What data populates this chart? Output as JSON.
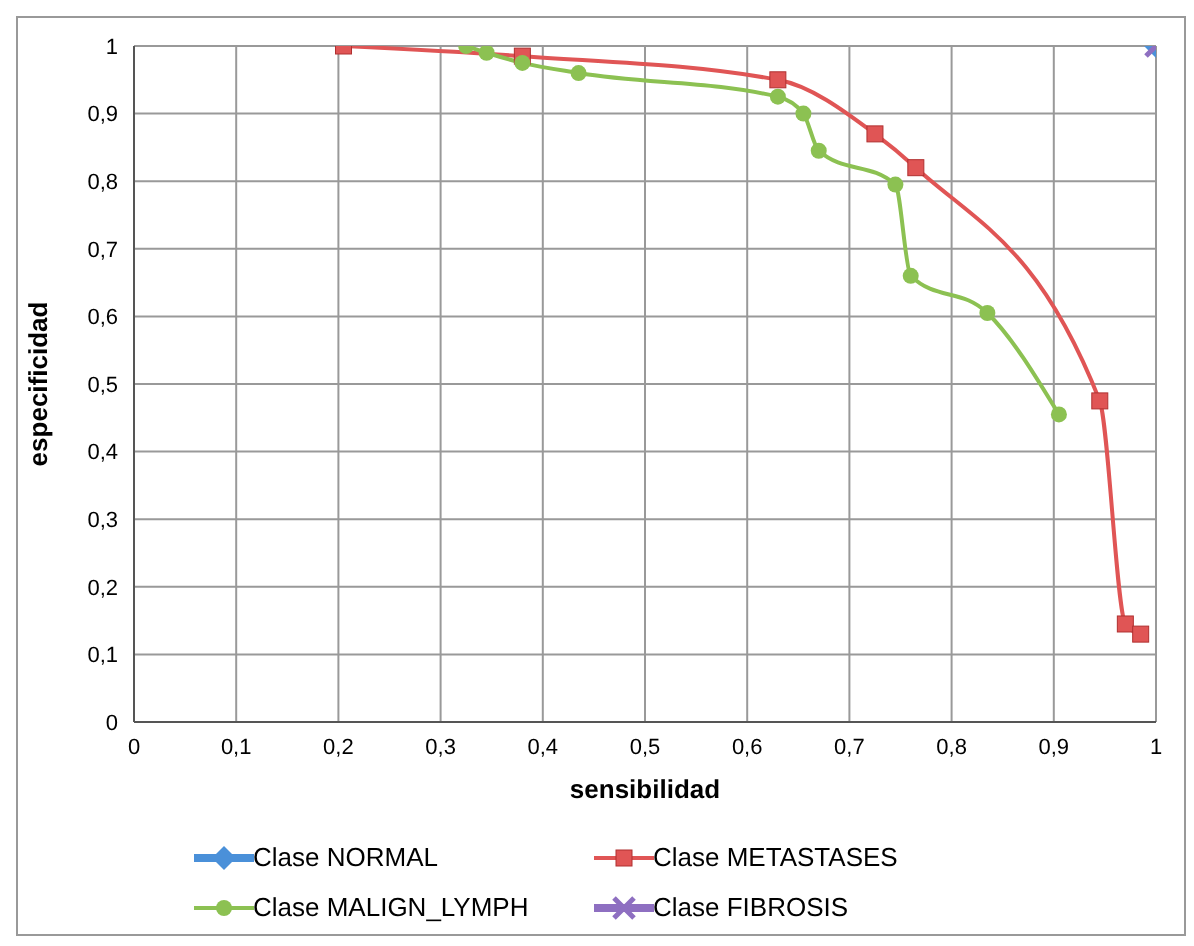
{
  "chart_data": {
    "type": "line",
    "xlabel": "sensibilidad",
    "ylabel": "especificidad",
    "xlim": [
      0,
      1
    ],
    "ylim": [
      0,
      1
    ],
    "xticks": [
      0,
      {
        "value": 0.1,
        "label": "0,1"
      },
      {
        "value": 0.2,
        "label": "0,2"
      },
      {
        "value": 0.3,
        "label": "0,3"
      },
      {
        "value": 0.4,
        "label": "0,4"
      },
      {
        "value": 0.5,
        "label": "0,5"
      },
      {
        "value": 0.6,
        "label": "0,6"
      },
      {
        "value": 0.7,
        "label": "0,7"
      },
      {
        "value": 0.8,
        "label": "0,8"
      },
      {
        "value": 0.9,
        "label": "0,9"
      },
      1
    ],
    "yticks": [
      0,
      {
        "value": 0.1,
        "label": "0,1"
      },
      {
        "value": 0.2,
        "label": "0,2"
      },
      {
        "value": 0.3,
        "label": "0,3"
      },
      {
        "value": 0.4,
        "label": "0,4"
      },
      {
        "value": 0.5,
        "label": "0,5"
      },
      {
        "value": 0.6,
        "label": "0,6"
      },
      {
        "value": 0.7,
        "label": "0,7"
      },
      {
        "value": 0.8,
        "label": "0,8"
      },
      {
        "value": 0.9,
        "label": "0,9"
      },
      1
    ],
    "grid": true,
    "legend": "bottom",
    "series": [
      {
        "name": "Clase NORMAL",
        "color": "#4a90d9",
        "marker": "diamond",
        "x": [
          1
        ],
        "values": [
          1
        ]
      },
      {
        "name": "Clase METASTASES",
        "color": "#e05555",
        "marker": "square",
        "x": [
          0.205,
          0.38,
          0.63,
          0.725,
          0.765,
          0.945,
          0.97,
          0.985
        ],
        "values": [
          1,
          0.985,
          0.95,
          0.87,
          0.82,
          0.475,
          0.145,
          0.13
        ]
      },
      {
        "name": "Clase MALIGN_LYMPH",
        "color": "#8cc152",
        "marker": "circle",
        "x": [
          0.325,
          0.345,
          0.38,
          0.435,
          0.63,
          0.655,
          0.67,
          0.745,
          0.76,
          0.835,
          0.905
        ],
        "values": [
          1,
          0.99,
          0.975,
          0.96,
          0.925,
          0.9,
          0.845,
          0.795,
          0.66,
          0.605,
          0.455
        ]
      },
      {
        "name": "Clase FIBROSIS",
        "color": "#8e6fc1",
        "marker": "cross",
        "x": [
          1
        ],
        "values": [
          1
        ]
      }
    ]
  }
}
